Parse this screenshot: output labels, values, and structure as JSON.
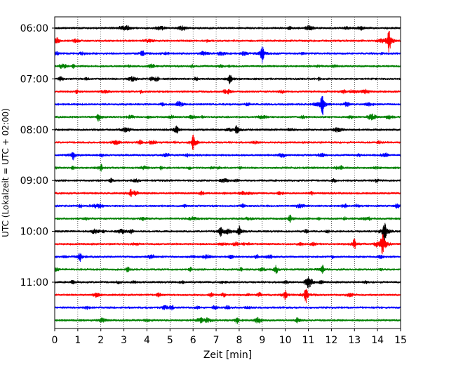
{
  "chart_data": {
    "type": "line",
    "title": "",
    "xlabel": "Zeit  [min]",
    "ylabel": "UTC (Lokalzeit = UTC + 02:00)",
    "xlim": [
      0,
      15
    ],
    "x_ticks": [
      "0",
      "1",
      "2",
      "3",
      "4",
      "5",
      "6",
      "7",
      "8",
      "9",
      "10",
      "11",
      "12",
      "13",
      "14",
      "15"
    ],
    "y_ticks": [
      "06:00",
      "07:00",
      "08:00",
      "09:00",
      "10:00",
      "11:00"
    ],
    "grid": "vertical dotted at each minute",
    "trace_colors": [
      "#000000",
      "#ff0000",
      "#0000ff",
      "#008000"
    ],
    "trace_count": 24,
    "trace_interval_min": 15,
    "first_trace": "06:00",
    "events": [
      {
        "trace": 1,
        "minute": 14.5,
        "amp": 1.0
      },
      {
        "trace": 2,
        "minute": 9.0,
        "amp": 0.7
      },
      {
        "trace": 2,
        "minute": 3.8,
        "amp": 0.25
      },
      {
        "trace": 4,
        "minute": 7.6,
        "amp": 0.4
      },
      {
        "trace": 6,
        "minute": 11.6,
        "amp": 1.0
      },
      {
        "trace": 7,
        "minute": 1.9,
        "amp": 0.3
      },
      {
        "trace": 8,
        "minute": 5.3,
        "amp": 0.3
      },
      {
        "trace": 8,
        "minute": 7.9,
        "amp": 0.4
      },
      {
        "trace": 9,
        "minute": 6.0,
        "amp": 0.5
      },
      {
        "trace": 10,
        "minute": 0.8,
        "amp": 0.35
      },
      {
        "trace": 11,
        "minute": 2.0,
        "amp": 0.3
      },
      {
        "trace": 13,
        "minute": 3.3,
        "amp": 0.25
      },
      {
        "trace": 15,
        "minute": 10.2,
        "amp": 0.3
      },
      {
        "trace": 16,
        "minute": 14.3,
        "amp": 1.0
      },
      {
        "trace": 16,
        "minute": 7.2,
        "amp": 0.4
      },
      {
        "trace": 16,
        "minute": 8.0,
        "amp": 0.5
      },
      {
        "trace": 17,
        "minute": 14.2,
        "amp": 0.8
      },
      {
        "trace": 17,
        "minute": 13.0,
        "amp": 0.4
      },
      {
        "trace": 18,
        "minute": 1.1,
        "amp": 0.35
      },
      {
        "trace": 19,
        "minute": 11.6,
        "amp": 0.35
      },
      {
        "trace": 19,
        "minute": 9.6,
        "amp": 0.3
      },
      {
        "trace": 21,
        "minute": 10.9,
        "amp": 0.6
      },
      {
        "trace": 21,
        "minute": 10.0,
        "amp": 0.35
      },
      {
        "trace": 23,
        "minute": 7.9,
        "amp": 0.25
      }
    ]
  }
}
